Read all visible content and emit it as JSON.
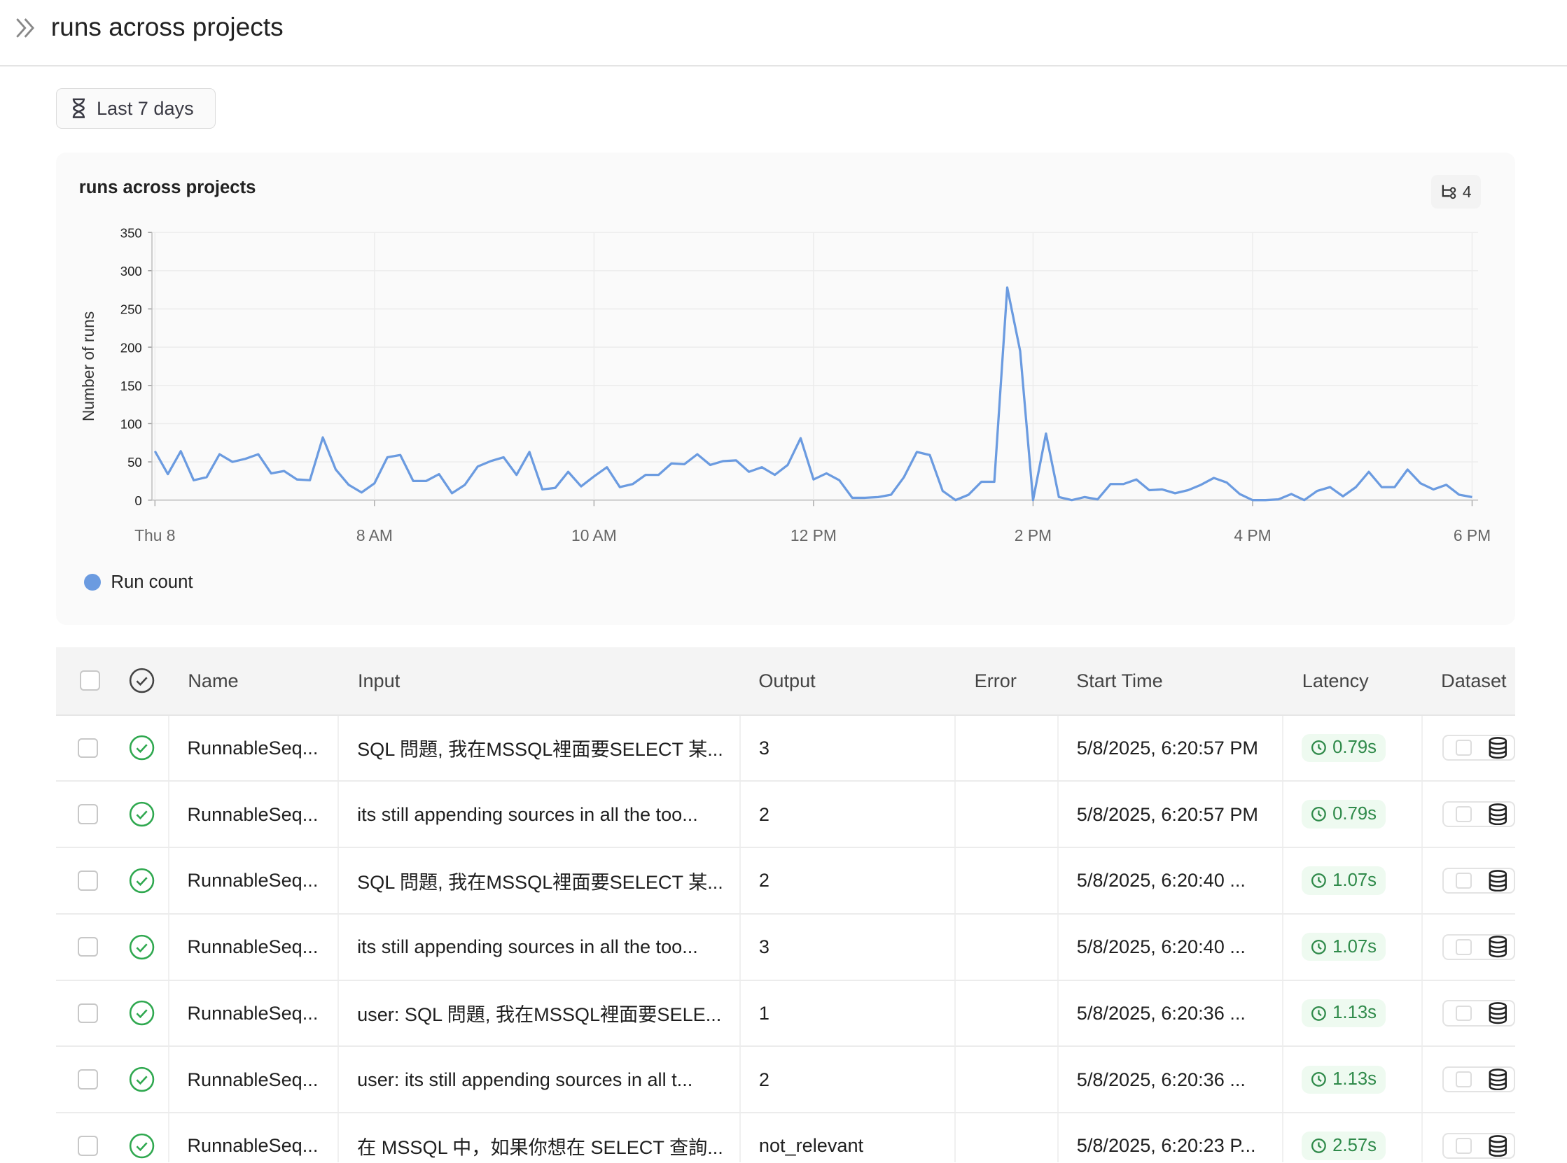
{
  "header": {
    "title": "runs across projects",
    "expand_icon": "chevrons-right-icon"
  },
  "filter": {
    "label": "Last 7 days",
    "icon": "hourglass-icon"
  },
  "chart_card": {
    "title": "runs across projects",
    "badge_icon": "branch-icon",
    "badge_count": "4"
  },
  "chart_data": {
    "type": "line",
    "title": "runs across projects",
    "ylabel": "Number of runs",
    "xlabel": "",
    "ylim": [
      0,
      350
    ],
    "yticks": [
      0,
      50,
      100,
      150,
      200,
      250,
      300,
      350
    ],
    "xticks": [
      "Thu 8",
      "8 AM",
      "10 AM",
      "12 PM",
      "2 PM",
      "4 PM",
      "6 PM"
    ],
    "grid": true,
    "legend_placement": "bottom-left",
    "series": [
      {
        "name": "Run count",
        "color": "#6b9be0",
        "values": [
          64,
          34,
          64,
          26,
          30,
          60,
          50,
          54,
          60,
          35,
          38,
          27,
          26,
          82,
          40,
          20,
          10,
          22,
          56,
          59,
          25,
          25,
          34,
          9,
          20,
          44,
          51,
          56,
          33,
          63,
          14,
          16,
          37,
          18,
          31,
          43,
          17,
          21,
          33,
          33,
          48,
          47,
          60,
          46,
          51,
          52,
          37,
          43,
          33,
          46,
          81,
          27,
          35,
          26,
          3,
          3,
          4,
          7,
          30,
          63,
          59,
          12,
          0,
          7,
          24,
          24,
          278,
          195,
          0,
          87,
          4,
          0,
          4,
          1,
          21,
          21,
          27,
          13,
          14,
          9,
          13,
          20,
          29,
          23,
          8,
          0,
          0,
          1,
          8,
          0,
          12,
          17,
          5,
          17,
          37,
          17,
          17,
          40,
          22,
          14,
          20,
          7,
          4
        ]
      }
    ]
  },
  "table": {
    "columns": [
      "Name",
      "Input",
      "Output",
      "Error",
      "Start Time",
      "Latency",
      "Dataset"
    ],
    "rows": [
      {
        "name": "RunnableSeq...",
        "input": "SQL 問題, 我在MSSQL裡面要SELECT 某...",
        "output": "3",
        "error": "",
        "start": "5/8/2025, 6:20:57 PM",
        "latency": "0.79s"
      },
      {
        "name": "RunnableSeq...",
        "input": "its still appending sources in all the too...",
        "output": "2",
        "error": "",
        "start": "5/8/2025, 6:20:57 PM",
        "latency": "0.79s"
      },
      {
        "name": "RunnableSeq...",
        "input": "SQL 問題, 我在MSSQL裡面要SELECT 某...",
        "output": "2",
        "error": "",
        "start": "5/8/2025, 6:20:40 ...",
        "latency": "1.07s"
      },
      {
        "name": "RunnableSeq...",
        "input": "its still appending sources in all the too...",
        "output": "3",
        "error": "",
        "start": "5/8/2025, 6:20:40 ...",
        "latency": "1.07s"
      },
      {
        "name": "RunnableSeq...",
        "input": "user: SQL 問題, 我在MSSQL裡面要SELE...",
        "output": "1",
        "error": "",
        "start": "5/8/2025, 6:20:36 ...",
        "latency": "1.13s"
      },
      {
        "name": "RunnableSeq...",
        "input": "user: its still appending sources in all t...",
        "output": "2",
        "error": "",
        "start": "5/8/2025, 6:20:36 ...",
        "latency": "1.13s"
      },
      {
        "name": "RunnableSeq...",
        "input": "在 MSSQL 中，如果你想在 SELECT 查詢...",
        "output": "not_relevant",
        "error": "",
        "start": "5/8/2025, 6:20:23 P...",
        "latency": "2.57s"
      }
    ]
  },
  "colors": {
    "accent": "#6b9be0",
    "success": "#2fa84f",
    "latency_bg": "#eefaf0"
  }
}
